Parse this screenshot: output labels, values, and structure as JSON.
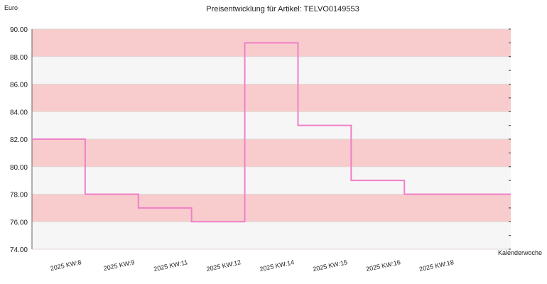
{
  "chart_data": {
    "type": "line",
    "step": true,
    "title": "Preisentwicklung für Artikel: TELVO0149553",
    "ylabel": "Euro",
    "xlabel": "Kalenderwoche",
    "ylim": [
      74,
      90
    ],
    "yticks": [
      "74.00",
      "76.00",
      "78.00",
      "80.00",
      "82.00",
      "84.00",
      "86.00",
      "88.00",
      "90.00"
    ],
    "categories": [
      "2025 KW:8",
      "2025 KW:9",
      "2025 KW:11",
      "2025 KW:12",
      "2025 KW:14",
      "2025 KW:15",
      "2025 KW:16",
      "2025 KW:18"
    ],
    "series": [
      {
        "values": [
          82,
          78,
          77,
          76,
          89,
          83,
          79,
          78
        ]
      }
    ],
    "grid": true,
    "legend": "none",
    "colors": {
      "line": "#f080c8",
      "band_dark": "#f8cccc",
      "band_light": "#f6f6f6"
    }
  }
}
